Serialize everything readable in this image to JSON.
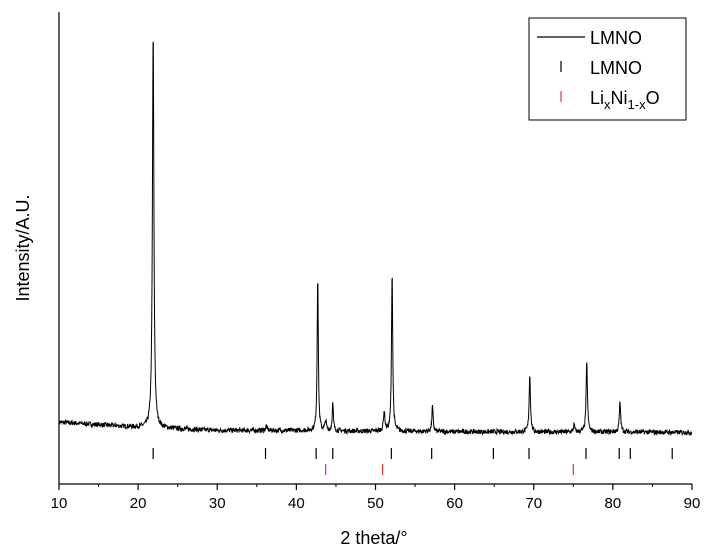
{
  "chart_data": {
    "type": "line",
    "xlabel": "2 theta/°",
    "ylabel": "Intensity/A.U.",
    "xlim": [
      10,
      90
    ],
    "x_ticks": [
      10,
      20,
      30,
      40,
      50,
      60,
      70,
      80,
      90
    ],
    "y_ticks_shown": false,
    "grid": false,
    "legend_position": "top-right",
    "series": [
      {
        "name": "LMNO",
        "style": "line",
        "color": "#000000",
        "baseline": [
          [
            10,
            0.025
          ],
          [
            20,
            0.012
          ],
          [
            30,
            0.004
          ],
          [
            40,
            0.004
          ],
          [
            50,
            0.002
          ],
          [
            60,
            0.001
          ],
          [
            70,
            0.0
          ],
          [
            80,
            0.0
          ],
          [
            90,
            -0.001
          ]
        ],
        "peaks": [
          {
            "x": 21.9,
            "height": 1.0,
            "width": 0.22
          },
          {
            "x": 36.2,
            "height": 0.012,
            "width": 0.2
          },
          {
            "x": 42.7,
            "height": 0.395,
            "width": 0.17
          },
          {
            "x": 43.7,
            "height": 0.025,
            "width": 0.2
          },
          {
            "x": 44.6,
            "height": 0.07,
            "width": 0.17
          },
          {
            "x": 51.1,
            "height": 0.05,
            "width": 0.22
          },
          {
            "x": 52.1,
            "height": 0.405,
            "width": 0.18
          },
          {
            "x": 57.2,
            "height": 0.065,
            "width": 0.18
          },
          {
            "x": 69.5,
            "height": 0.145,
            "width": 0.2
          },
          {
            "x": 75.1,
            "height": 0.018,
            "width": 0.2
          },
          {
            "x": 76.7,
            "height": 0.175,
            "width": 0.2
          },
          {
            "x": 80.9,
            "height": 0.075,
            "width": 0.2
          }
        ]
      },
      {
        "name": "LMNO",
        "style": "reference-ticks",
        "color": "#000000",
        "x": [
          21.9,
          36.1,
          42.5,
          44.6,
          52.0,
          57.1,
          64.9,
          69.4,
          76.6,
          80.8,
          82.2,
          87.5
        ]
      },
      {
        "name": "LixNi1-xO",
        "name_parts": {
          "base": "Li",
          "sub1": "x",
          "mid": "Ni",
          "sub2": "1-x",
          "end": "O"
        },
        "style": "reference-ticks",
        "color": "#e8302c",
        "x": [
          43.7,
          50.9,
          75.0
        ]
      }
    ]
  }
}
